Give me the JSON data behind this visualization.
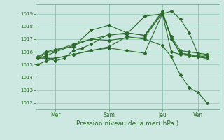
{
  "xlabel": "Pression niveau de la mer( hPa )",
  "bg_color": "#cce8e0",
  "grid_color": "#99ccbb",
  "line_color": "#2d6b2d",
  "vline_color": "#7aaa99",
  "ylim": [
    1011.5,
    1019.75
  ],
  "yticks": [
    1012,
    1013,
    1014,
    1015,
    1016,
    1017,
    1018,
    1019
  ],
  "xtick_labels": [
    "Mer",
    "Sam",
    "Jeu",
    "Ven"
  ],
  "xtick_positions": [
    1,
    4,
    7,
    9
  ],
  "xlim": [
    -0.1,
    10.2
  ],
  "series_x": [
    [
      0,
      0.5,
      1,
      1.5,
      2,
      2.5,
      3,
      4,
      5,
      6,
      7,
      7.5,
      8,
      8.5,
      9,
      9.5
    ],
    [
      0,
      0.5,
      1,
      2,
      3,
      4,
      5,
      6,
      7,
      7.5,
      8,
      8.5,
      9,
      9.5
    ],
    [
      0,
      0.5,
      1,
      2,
      3,
      4,
      5,
      6,
      7,
      7.5,
      8,
      8.5,
      9,
      9.5
    ],
    [
      0,
      0.5,
      1,
      2,
      3,
      4,
      5,
      6,
      7,
      7.5,
      8,
      8.5,
      9,
      9.5
    ],
    [
      0,
      0.5,
      1,
      2,
      3,
      4,
      5,
      6,
      7,
      7.5,
      8,
      8.5,
      9,
      9.5
    ],
    [
      0,
      0.5,
      1,
      2,
      3,
      4,
      5,
      6,
      7,
      7.5,
      8,
      8.5,
      9,
      9.5
    ]
  ],
  "series_y": [
    [
      1015.6,
      1015.55,
      1015.3,
      1015.5,
      1016.1,
      1016.3,
      1016.6,
      1017.4,
      1017.4,
      1018.8,
      1019.0,
      1019.2,
      1018.6,
      1017.5,
      1015.8,
      1015.7
    ],
    [
      1015.5,
      1015.7,
      1016.0,
      1016.5,
      1017.0,
      1017.3,
      1017.5,
      1017.3,
      1019.2,
      1017.1,
      1015.9,
      1015.8,
      1015.6,
      1015.5
    ],
    [
      1015.6,
      1016.0,
      1016.2,
      1016.4,
      1017.7,
      1018.1,
      1017.5,
      1017.3,
      1019.0,
      1017.2,
      1016.1,
      1016.0,
      1015.9,
      1015.8
    ],
    [
      1015.5,
      1015.9,
      1016.1,
      1016.6,
      1017.0,
      1016.9,
      1017.1,
      1017.1,
      1019.1,
      1017.0,
      1015.9,
      1015.8,
      1015.7,
      1015.6
    ],
    [
      1015.5,
      1015.5,
      1015.5,
      1015.8,
      1016.1,
      1016.3,
      1016.1,
      1015.9,
      1019.0,
      1016.0,
      1015.8,
      1015.7,
      1015.6,
      1015.5
    ],
    [
      1015.0,
      1015.3,
      1015.5,
      1015.8,
      1016.1,
      1016.4,
      1017.2,
      1017.0,
      1016.5,
      1015.6,
      1014.2,
      1013.2,
      1012.8,
      1012.0
    ]
  ]
}
